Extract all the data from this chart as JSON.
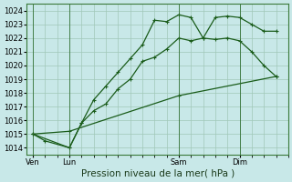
{
  "bg_color": "#c8e8e8",
  "plot_bg_color": "#c8e8e8",
  "grid_color": "#a0c8b8",
  "line_color": "#1a5c1a",
  "marker_color": "#1a5c1a",
  "ylim": [
    1013.5,
    1024.5
  ],
  "yticks": [
    1014,
    1015,
    1016,
    1017,
    1018,
    1019,
    1020,
    1021,
    1022,
    1023,
    1024
  ],
  "xlabel": "Pression niveau de la mer( hPa )",
  "xlabel_fontsize": 7.5,
  "tick_fontsize": 6.0,
  "day_labels": [
    "Ven",
    "Lun",
    "Sam",
    "Dim"
  ],
  "day_positions": [
    0,
    3,
    12,
    17
  ],
  "series1": {
    "x": [
      0,
      3,
      12,
      20
    ],
    "y": [
      1015.0,
      1015.2,
      1017.8,
      1019.2
    ]
  },
  "series2": {
    "x": [
      0,
      1,
      3,
      4,
      5,
      6,
      7,
      8,
      9,
      10,
      11,
      12,
      13,
      14,
      15,
      16,
      17,
      18,
      19,
      20
    ],
    "y": [
      1015.0,
      1014.5,
      1014.0,
      1015.8,
      1016.7,
      1017.2,
      1018.3,
      1019.0,
      1020.3,
      1020.6,
      1021.2,
      1022.0,
      1021.8,
      1022.0,
      1021.9,
      1022.0,
      1021.8,
      1021.0,
      1020.0,
      1019.2
    ]
  },
  "series3": {
    "x": [
      0,
      3,
      4,
      5,
      6,
      7,
      8,
      9,
      10,
      11,
      12,
      13,
      14,
      15,
      16,
      17,
      18,
      19,
      20
    ],
    "y": [
      1015.0,
      1014.0,
      1015.8,
      1017.5,
      1018.5,
      1019.5,
      1020.5,
      1021.5,
      1023.3,
      1023.2,
      1023.7,
      1023.5,
      1022.0,
      1023.5,
      1023.6,
      1023.5,
      1023.0,
      1022.5,
      1022.5
    ]
  },
  "vline_positions": [
    0,
    3,
    12,
    17
  ],
  "xlim": [
    -0.5,
    21
  ]
}
